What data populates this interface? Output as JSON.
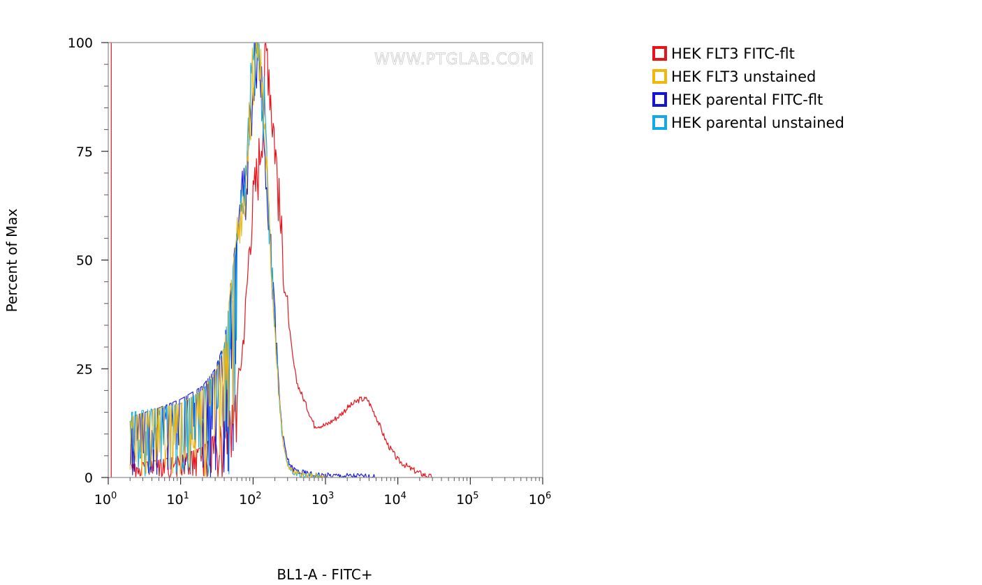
{
  "chart_data": {
    "type": "line",
    "xlabel": "BL1-A - FITC+",
    "ylabel": "Percent of Max",
    "xscale": "log",
    "xlim": [
      1,
      1000000
    ],
    "ylim": [
      0,
      100
    ],
    "yticks": [
      "0",
      "25",
      "50",
      "75",
      "100"
    ],
    "xticks": [
      {
        "base": "10",
        "exp": "0"
      },
      {
        "base": "10",
        "exp": "1"
      },
      {
        "base": "10",
        "exp": "2"
      },
      {
        "base": "10",
        "exp": "3"
      },
      {
        "base": "10",
        "exp": "4"
      },
      {
        "base": "10",
        "exp": "5"
      },
      {
        "base": "10",
        "exp": "6"
      }
    ],
    "watermark": "WWW.PTGLAB.COM",
    "legend_position": "right",
    "series": [
      {
        "name": "HEK FLT3 FITC-flt",
        "color": "#e8141c",
        "x": [
          1.1,
          1.1,
          2.1,
          5,
          10,
          20,
          30,
          40,
          50,
          60,
          70,
          80,
          90,
          100,
          110,
          120,
          130,
          140,
          150,
          160,
          170,
          180,
          200,
          230,
          260,
          300,
          350,
          400,
          500,
          700,
          1000,
          1500,
          2000,
          3000,
          3800,
          5000,
          7000,
          10000,
          15000,
          20000,
          30000
        ],
        "y": [
          0,
          100,
          3,
          4,
          5,
          7,
          10,
          13,
          16,
          20,
          28,
          40,
          55,
          63,
          68,
          72,
          80,
          86,
          95,
          100,
          93,
          86,
          78,
          62,
          50,
          38,
          28,
          22,
          18,
          12,
          12,
          14,
          16,
          18,
          18,
          14,
          8,
          4,
          2,
          1,
          0
        ]
      },
      {
        "name": "HEK FLT3 unstained",
        "color": "#f2b70f",
        "x": [
          2,
          2.1,
          5,
          10,
          20,
          30,
          40,
          50,
          60,
          70,
          80,
          90,
          100,
          110,
          120,
          130,
          140,
          150,
          170,
          200,
          230,
          260,
          300,
          350,
          400,
          500,
          700,
          1000
        ],
        "y": [
          12,
          14,
          16,
          17,
          20,
          24,
          30,
          45,
          56,
          62,
          68,
          80,
          95,
          100,
          98,
          92,
          86,
          75,
          55,
          35,
          18,
          8,
          3,
          1.5,
          1,
          0.5,
          0.3,
          0
        ]
      },
      {
        "name": "HEK parental FITC-flt",
        "color": "#1414d8",
        "x": [
          2,
          2.1,
          5,
          10,
          20,
          30,
          40,
          50,
          60,
          70,
          80,
          90,
          100,
          110,
          120,
          130,
          140,
          150,
          170,
          200,
          230,
          260,
          300,
          350,
          400,
          500,
          700,
          1000,
          2000,
          3000,
          5000
        ],
        "y": [
          12,
          14,
          16,
          18,
          21,
          25,
          31,
          46,
          57,
          64,
          66,
          78,
          94,
          100,
          98,
          92,
          85,
          74,
          55,
          36,
          19,
          9,
          4,
          2,
          1.5,
          1,
          0.6,
          0.4,
          0.3,
          0.3,
          0
        ]
      },
      {
        "name": "HEK parental unstained",
        "color": "#12aae6",
        "x": [
          2,
          2.1,
          5,
          10,
          20,
          30,
          40,
          50,
          60,
          70,
          80,
          90,
          100,
          110,
          120,
          130,
          140,
          150,
          170,
          200,
          230,
          260,
          300,
          350,
          400,
          500,
          700,
          1000
        ],
        "y": [
          13,
          15,
          16,
          17,
          20,
          24,
          30,
          45,
          56,
          62,
          68,
          82,
          96,
          100,
          97,
          92,
          86,
          75,
          55,
          35,
          18,
          8,
          3,
          1.5,
          1,
          0.5,
          0.3,
          0
        ]
      }
    ]
  }
}
